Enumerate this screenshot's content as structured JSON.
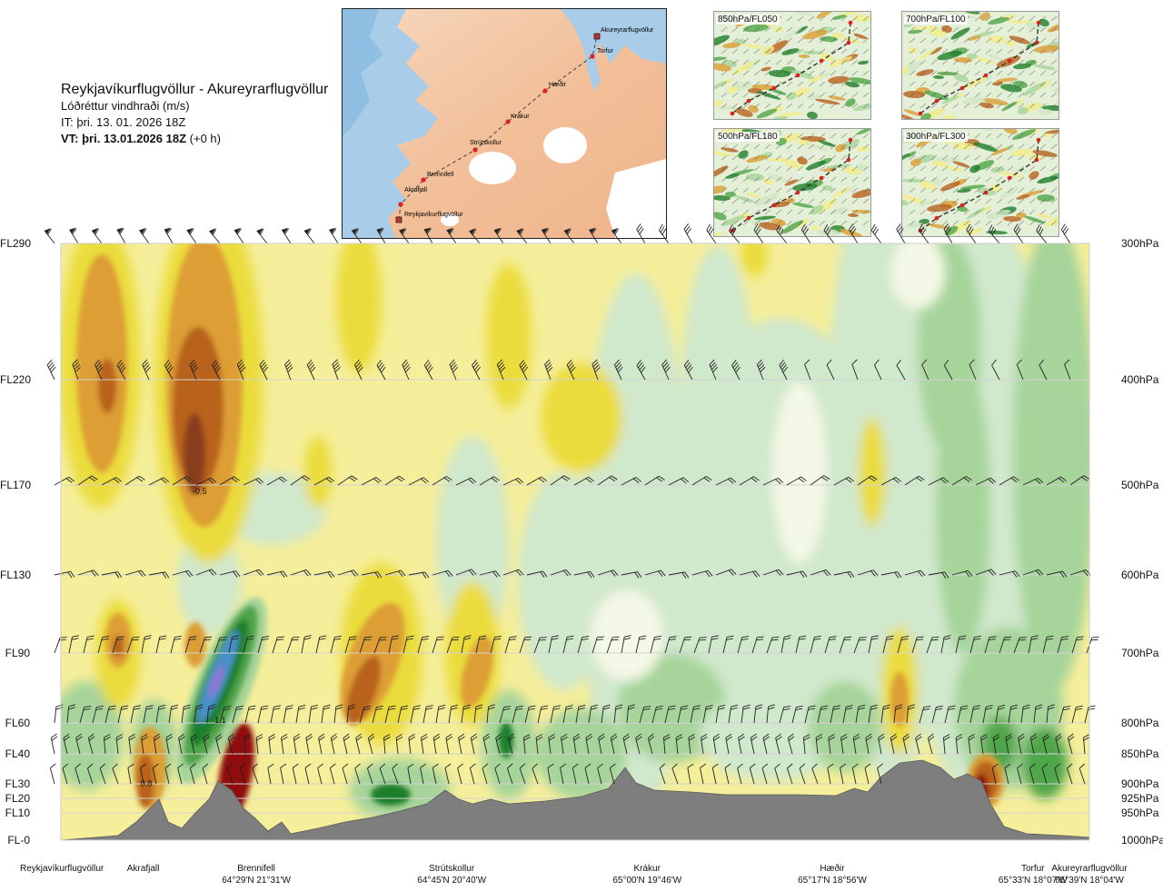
{
  "header": {
    "route": "Reykjavíkurflugvöllur - Akureyrarflugvöllur",
    "subtitle": "Lóðréttur vindhraði (m/s)",
    "it": "IT: þri. 13. 01. 2026 18Z",
    "vt_bold": "VT: þri. 13.01.2026 18Z",
    "vt_suffix": " (+0 h)"
  },
  "route_map": {
    "points": [
      {
        "name": "Reykjavíkurflugvöllur",
        "marker": "square"
      },
      {
        "name": "Akrafjall",
        "marker": "dot"
      },
      {
        "name": "Brennifell",
        "marker": "dot"
      },
      {
        "name": "Strútskollur",
        "marker": "dot"
      },
      {
        "name": "Krákur",
        "marker": "dot"
      },
      {
        "name": "Hæðir",
        "marker": "dot"
      },
      {
        "name": "Torfur",
        "marker": "dot"
      },
      {
        "name": "Akureyrarflugvöllur",
        "marker": "square"
      }
    ]
  },
  "mini_maps": [
    {
      "label": "850hPa/FL050"
    },
    {
      "label": "700hPa/FL100"
    },
    {
      "label": "500hPa/FL180"
    },
    {
      "label": "300hPa/FL300"
    }
  ],
  "chart_data": {
    "type": "heatmap",
    "title": "Lóðréttur vindhraði (m/s)",
    "levels": [
      {
        "fl": "FL290",
        "hpa": "300hPa",
        "p": 300
      },
      {
        "fl": "FL220",
        "hpa": "400hPa",
        "p": 400
      },
      {
        "fl": "FL170",
        "hpa": "500hPa",
        "p": 500
      },
      {
        "fl": "FL130",
        "hpa": "600hPa",
        "p": 600
      },
      {
        "fl": "FL90",
        "hpa": "700hPa",
        "p": 700
      },
      {
        "fl": "FL60",
        "hpa": "800hPa",
        "p": 800
      },
      {
        "fl": "FL40",
        "hpa": "850hPa",
        "p": 850
      },
      {
        "fl": "FL30",
        "hpa": "900hPa",
        "p": 900
      },
      {
        "fl": "FL20",
        "hpa": "925hPa",
        "p": 925
      },
      {
        "fl": "FL10",
        "hpa": "950hPa",
        "p": 950
      },
      {
        "fl": "FL-0",
        "hpa": "1000hPa",
        "p": 1000
      }
    ],
    "locations": [
      {
        "name": "Reykjavíkurflugvöllur",
        "coord": "",
        "pos": 0.0
      },
      {
        "name": "Akrafjall",
        "coord": "",
        "pos": 0.08
      },
      {
        "name": "Brennifell",
        "coord": "64°29'N 21°31'W",
        "pos": 0.19
      },
      {
        "name": "Strútskollur",
        "coord": "64°45'N 20°40'W",
        "pos": 0.38
      },
      {
        "name": "Krákur",
        "coord": "65°00'N 19°46'W",
        "pos": 0.57
      },
      {
        "name": "Hæðir",
        "coord": "65°17'N 18°56'W",
        "pos": 0.75
      },
      {
        "name": "Torfur",
        "coord": "65°33'N 18°07'W",
        "pos": 0.945
      },
      {
        "name": "Akureyrarflugvöllur",
        "coord": "65°39'N 18°04'W",
        "pos": 1.0
      }
    ],
    "contour_labels": [
      {
        "text": "-0.5",
        "pos": 0.135,
        "p": 510
      },
      {
        "text": "1.1",
        "pos": 0.155,
        "p": 800
      },
      {
        "text": "0.8",
        "pos": 0.083,
        "p": 904
      }
    ],
    "colors": {
      "strong_down": "#8a3e1a",
      "mod_down": "#b8621e",
      "weak_down": "#dc9e34",
      "slight_down": "#ebdc3c",
      "neutral_down": "#f5ee9a",
      "neutral_up": "#f4f8e6",
      "slight_up": "#d0e8cc",
      "weak_up": "#a6d49a",
      "mod_up": "#4fa54a",
      "strong_up": "#1f7f2a",
      "very_strong_up": "#4a8fc8",
      "extreme_up": "#9b6fd8",
      "intense_down": "#8f1010",
      "terrain": "#7e7e7e"
    }
  }
}
